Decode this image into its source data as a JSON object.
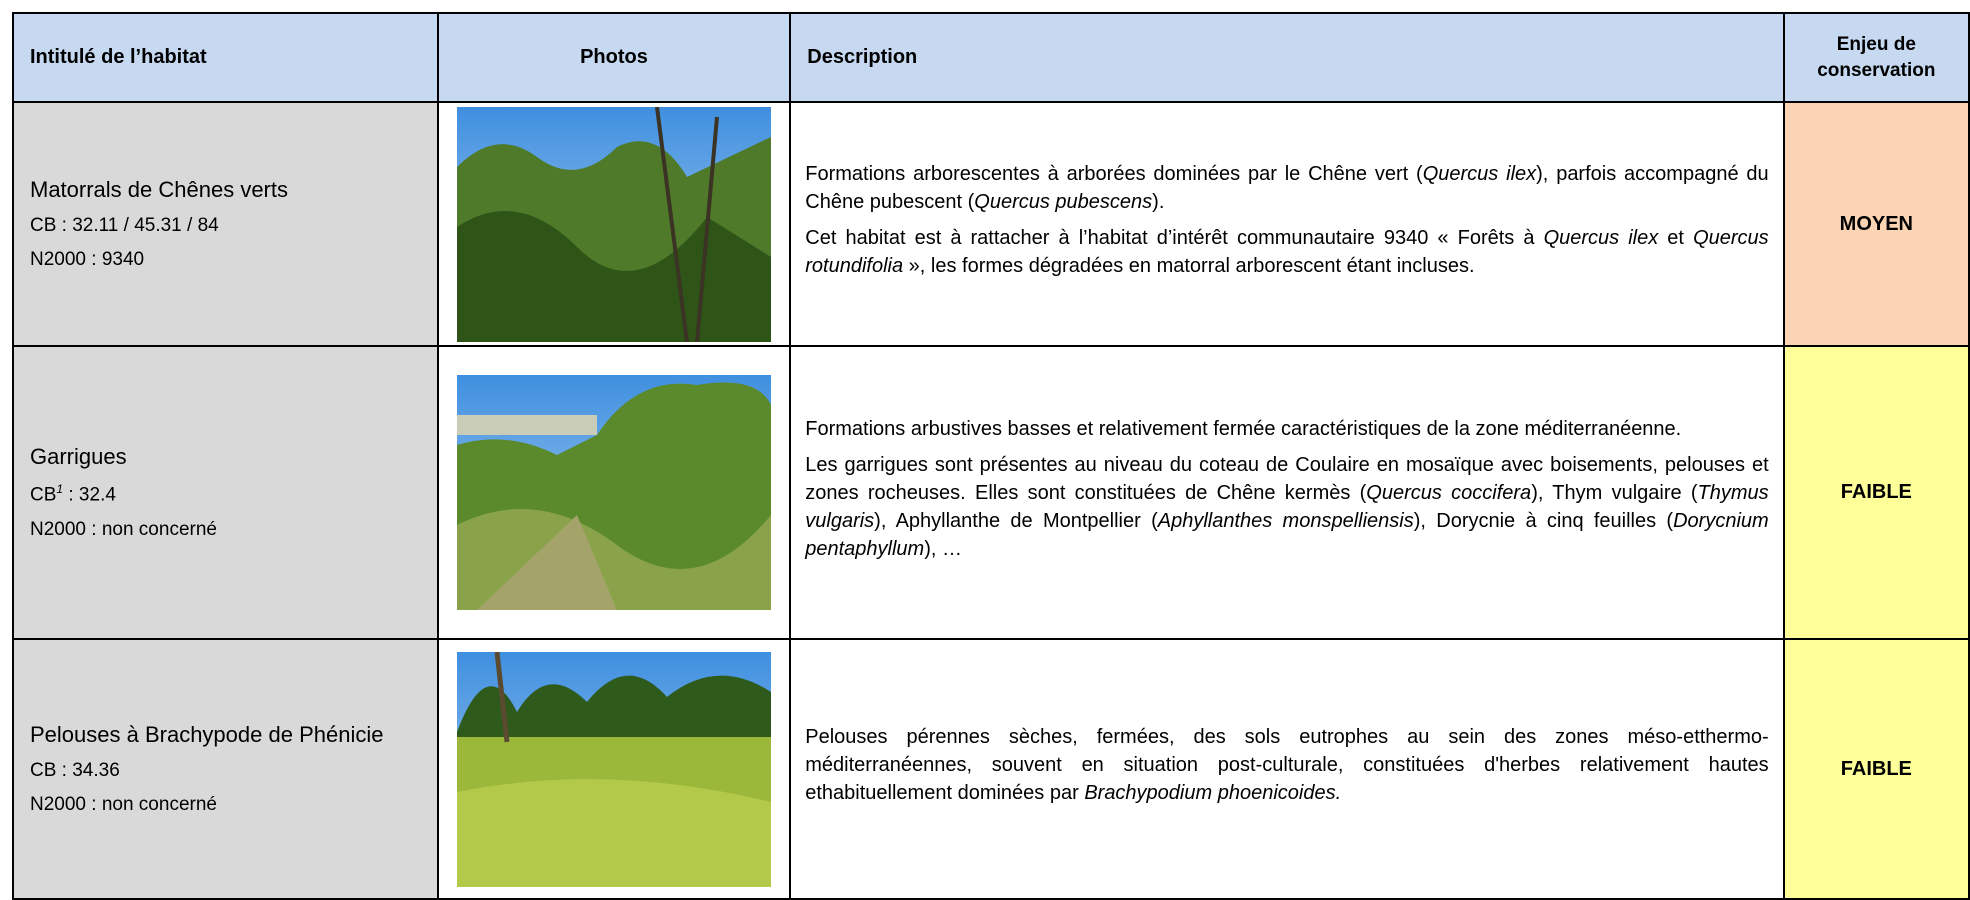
{
  "table": {
    "header": [
      "Intitulé de l’habitat",
      "Photos",
      "Description",
      "Enjeu de conservation"
    ],
    "rows": [
      {
        "name": "Matorrals de Chênes verts",
        "codes": [
          [
            {
              "text": "CB : 32.11 / 45.31 / 84"
            }
          ],
          [
            {
              "text": "N2000 : 9340"
            }
          ]
        ],
        "description": [
          [
            {
              "text": "Formations arborescentes à arborées dominées par le Chêne vert ("
            },
            {
              "text": "Quercus ilex",
              "style": "italic"
            },
            {
              "text": "), parfois accompagné du Chêne pubescent ("
            },
            {
              "text": "Quercus pubescens",
              "style": "italic"
            },
            {
              "text": ")."
            }
          ],
          [
            {
              "text": "Cet habitat est à rattacher à l’habitat d’intérêt communautaire 9340 « Forêts à "
            },
            {
              "text": "Quercus ilex",
              "style": "italic"
            },
            {
              "text": " et "
            },
            {
              "text": "Quercus rotundifolia",
              "style": "italic"
            },
            {
              "text": " », les formes dégradées en matorral arborescent étant incluses."
            }
          ]
        ],
        "enjeu": "MOYEN",
        "color": "#fbd4b4"
      },
      {
        "name": "Garrigues",
        "codes": [
          [
            {
              "text": "CB"
            },
            {
              "text": "1",
              "style": "sup"
            },
            {
              "text": " : 32.4"
            }
          ],
          [
            {
              "text": "N2000 : non concerné"
            }
          ]
        ],
        "description": [
          [
            {
              "text": "Formations arbustives basses et relativement fermée caractéristiques de la zone méditerranéenne."
            }
          ],
          [
            {
              "text": "Les garrigues sont présentes au niveau du coteau de Coulaire en mosaïque avec boisements, pelouses et zones rocheuses. Elles sont constituées de Chêne kermès ("
            },
            {
              "text": "Quercus coccifera",
              "style": "italic"
            },
            {
              "text": "), Thym vulgaire ("
            },
            {
              "text": "Thymus vulgaris",
              "style": "italic"
            },
            {
              "text": "), Aphyllanthe de Montpellier ("
            },
            {
              "text": "Aphyllanthes monspelliensis",
              "style": "italic"
            },
            {
              "text": "), Dorycnie à cinq feuilles ("
            },
            {
              "text": "Dorycnium pentaphyllum",
              "style": "italic"
            },
            {
              "text": "), …"
            }
          ]
        ],
        "enjeu": "FAIBLE",
        "color": "#ffff99"
      },
      {
        "name": "Pelouses à Brachypode de Phénicie",
        "codes": [
          [
            {
              "text": "CB : 34.36"
            }
          ],
          [
            {
              "text": "N2000 : non concerné"
            }
          ]
        ],
        "description": [
          [
            {
              "text": "Pelouses pérennes sèches, fermées, des sols eutrophes au sein des zones méso-etthermo-méditerranéennes, souvent en situation post-culturale, constituées d'herbes relativement hautes ethabituellement dominées par "
            },
            {
              "text": "Brachypodium phoenicoides.",
              "style": "italic"
            }
          ]
        ],
        "enjeu": "FAIBLE",
        "color": "#ffff99"
      }
    ]
  }
}
